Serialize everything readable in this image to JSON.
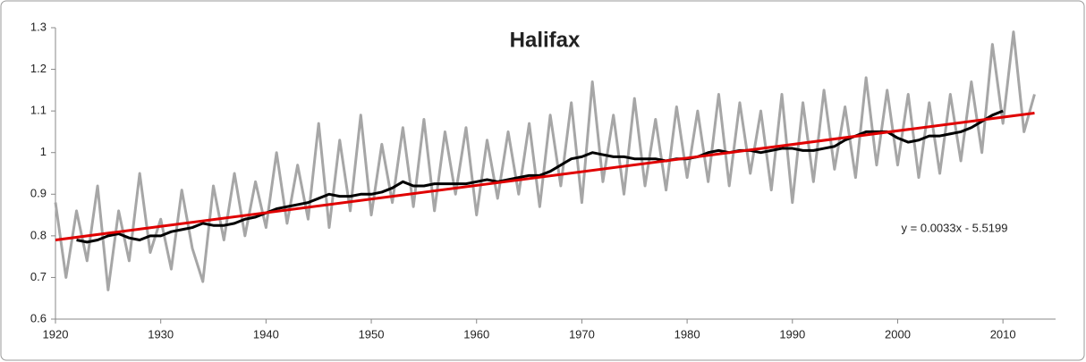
{
  "chart_data": {
    "type": "line",
    "title": "Halifax",
    "annotation": "y = 0.0033x - 5.5199",
    "xlim": [
      1920,
      2015
    ],
    "xticks": [
      1920,
      1930,
      1940,
      1950,
      1960,
      1970,
      1980,
      1990,
      2000,
      2010
    ],
    "ylim": [
      0.6,
      1.3
    ],
    "yticks": [
      0.6,
      0.7,
      0.8,
      0.9,
      1,
      1.1,
      1.2,
      1.3
    ],
    "series": [
      {
        "color": "#a6a6a6",
        "x": [
          1920,
          1921,
          1922,
          1923,
          1924,
          1925,
          1926,
          1927,
          1928,
          1929,
          1930,
          1931,
          1932,
          1933,
          1934,
          1935,
          1936,
          1937,
          1938,
          1939,
          1940,
          1941,
          1942,
          1943,
          1944,
          1945,
          1946,
          1947,
          1948,
          1949,
          1950,
          1951,
          1952,
          1953,
          1954,
          1955,
          1956,
          1957,
          1958,
          1959,
          1960,
          1961,
          1962,
          1963,
          1964,
          1965,
          1966,
          1967,
          1968,
          1969,
          1970,
          1971,
          1972,
          1973,
          1974,
          1975,
          1976,
          1977,
          1978,
          1979,
          1980,
          1981,
          1982,
          1983,
          1984,
          1985,
          1986,
          1987,
          1988,
          1989,
          1990,
          1991,
          1992,
          1993,
          1994,
          1995,
          1996,
          1997,
          1998,
          1999,
          2000,
          2001,
          2002,
          2003,
          2004,
          2005,
          2006,
          2007,
          2008,
          2009,
          2010,
          2011,
          2012,
          2013
        ],
        "values": [
          0.88,
          0.7,
          0.86,
          0.74,
          0.92,
          0.67,
          0.86,
          0.74,
          0.95,
          0.76,
          0.84,
          0.72,
          0.91,
          0.77,
          0.69,
          0.92,
          0.79,
          0.95,
          0.8,
          0.93,
          0.82,
          1.0,
          0.83,
          0.97,
          0.84,
          1.07,
          0.82,
          1.03,
          0.86,
          1.09,
          0.85,
          1.02,
          0.88,
          1.06,
          0.87,
          1.08,
          0.86,
          1.05,
          0.9,
          1.06,
          0.85,
          1.03,
          0.89,
          1.05,
          0.9,
          1.07,
          0.87,
          1.09,
          0.92,
          1.12,
          0.88,
          1.17,
          0.93,
          1.09,
          0.9,
          1.13,
          0.92,
          1.08,
          0.91,
          1.11,
          0.94,
          1.1,
          0.93,
          1.14,
          0.92,
          1.12,
          0.95,
          1.1,
          0.91,
          1.14,
          0.88,
          1.12,
          0.93,
          1.15,
          0.96,
          1.11,
          0.94,
          1.18,
          0.97,
          1.15,
          0.97,
          1.14,
          0.94,
          1.12,
          0.95,
          1.14,
          0.98,
          1.17,
          1.0,
          1.26,
          1.07,
          1.29,
          1.05,
          1.14
        ]
      },
      {
        "color": "#000000",
        "x": [
          1922,
          1923,
          1924,
          1925,
          1926,
          1927,
          1928,
          1929,
          1930,
          1931,
          1932,
          1933,
          1934,
          1935,
          1936,
          1937,
          1938,
          1939,
          1940,
          1941,
          1942,
          1943,
          1944,
          1945,
          1946,
          1947,
          1948,
          1949,
          1950,
          1951,
          1952,
          1953,
          1954,
          1955,
          1956,
          1957,
          1958,
          1959,
          1960,
          1961,
          1962,
          1963,
          1964,
          1965,
          1966,
          1967,
          1968,
          1969,
          1970,
          1971,
          1972,
          1973,
          1974,
          1975,
          1976,
          1977,
          1978,
          1979,
          1980,
          1981,
          1982,
          1983,
          1984,
          1985,
          1986,
          1987,
          1988,
          1989,
          1990,
          1991,
          1992,
          1993,
          1994,
          1995,
          1996,
          1997,
          1998,
          1999,
          2000,
          2001,
          2002,
          2003,
          2004,
          2005,
          2006,
          2007,
          2008,
          2009,
          2010
        ],
        "values": [
          0.79,
          0.785,
          0.79,
          0.8,
          0.805,
          0.795,
          0.79,
          0.8,
          0.8,
          0.81,
          0.815,
          0.82,
          0.83,
          0.825,
          0.825,
          0.83,
          0.84,
          0.845,
          0.855,
          0.865,
          0.87,
          0.875,
          0.88,
          0.89,
          0.9,
          0.895,
          0.895,
          0.9,
          0.9,
          0.905,
          0.915,
          0.93,
          0.92,
          0.92,
          0.925,
          0.925,
          0.925,
          0.925,
          0.93,
          0.935,
          0.93,
          0.935,
          0.94,
          0.945,
          0.945,
          0.955,
          0.97,
          0.985,
          0.99,
          1.0,
          0.995,
          0.99,
          0.99,
          0.985,
          0.985,
          0.985,
          0.98,
          0.985,
          0.985,
          0.99,
          1.0,
          1.005,
          1.0,
          1.005,
          1.005,
          1.0,
          1.005,
          1.01,
          1.01,
          1.005,
          1.005,
          1.01,
          1.015,
          1.03,
          1.04,
          1.05,
          1.05,
          1.05,
          1.035,
          1.025,
          1.03,
          1.04,
          1.04,
          1.045,
          1.05,
          1.06,
          1.075,
          1.09,
          1.1
        ]
      },
      {
        "color": "#e00000",
        "x": [
          1920,
          2013
        ],
        "values": [
          0.79,
          1.095
        ]
      }
    ]
  }
}
